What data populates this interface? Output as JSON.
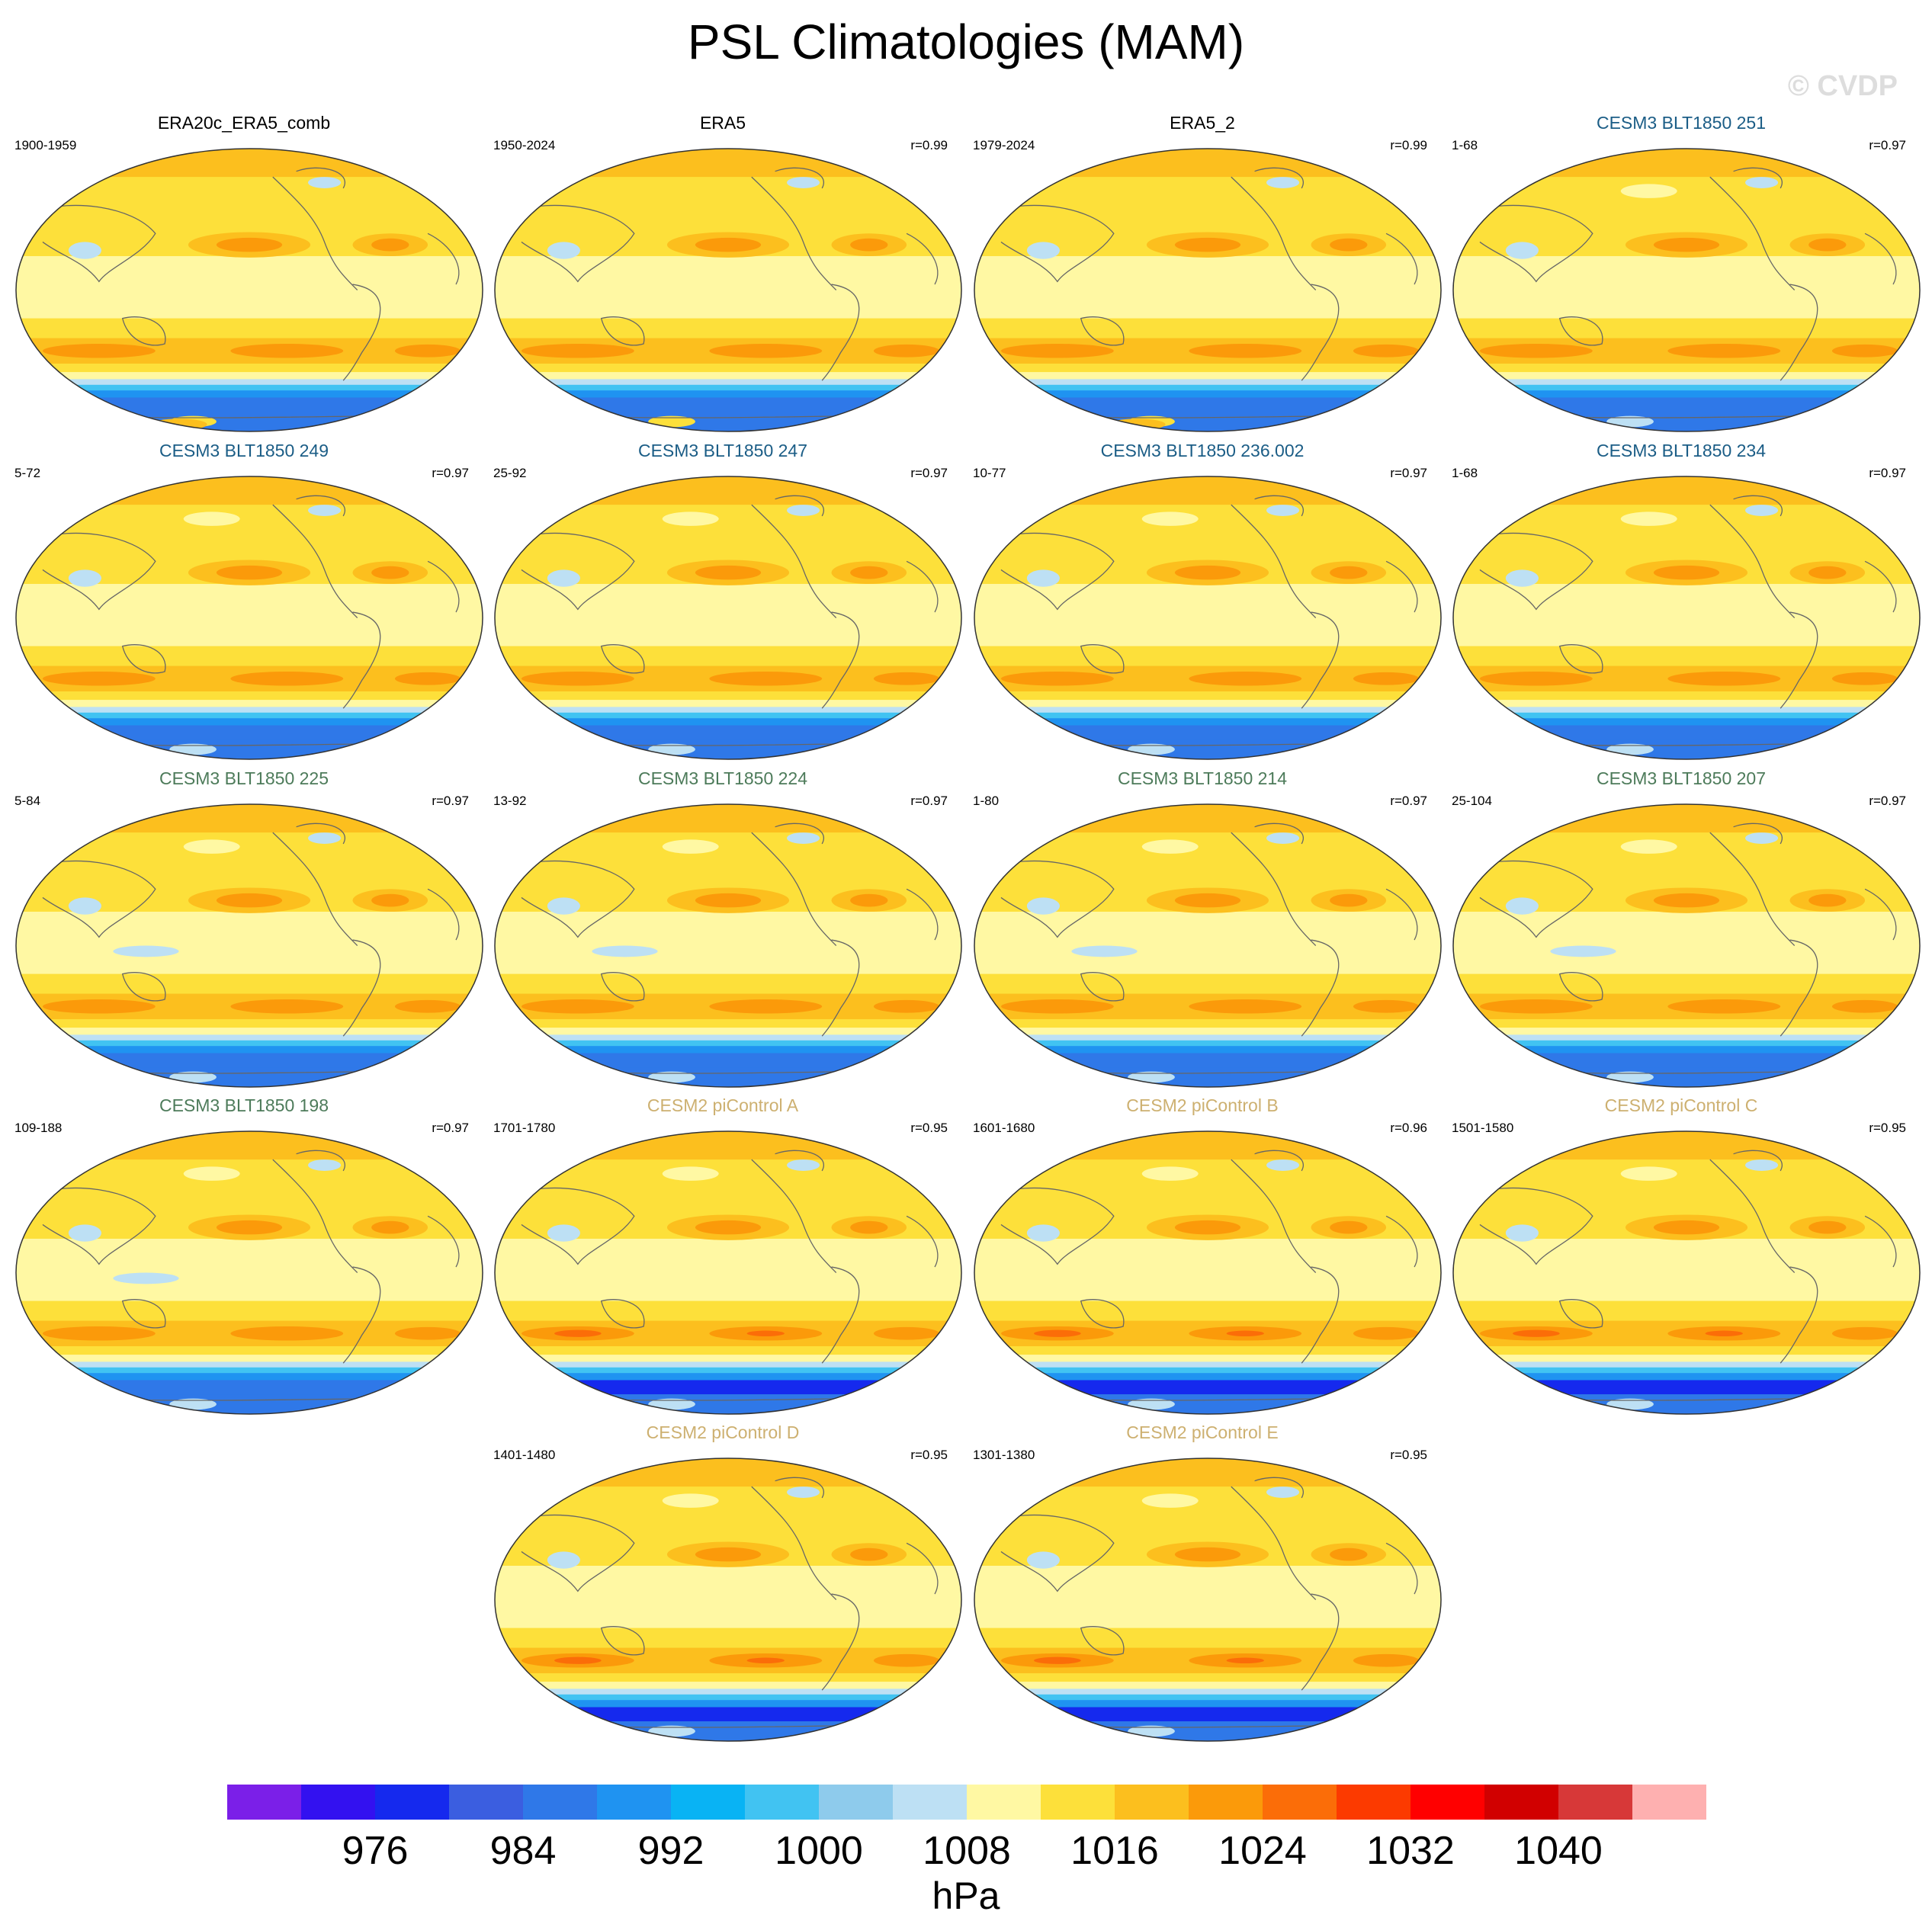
{
  "title": "PSL Climatologies (MAM)",
  "watermark": "© CVDP",
  "colors": {
    "levels": [
      "#7b1fe8",
      "#3311f0",
      "#1529ee",
      "#3b5ee0",
      "#2f78e8",
      "#1f93f1",
      "#09b3f4",
      "#41c3f2",
      "#8ecbec",
      "#bde0f4",
      "#fff8a3",
      "#fde03a",
      "#fcbf1e",
      "#fb9a0a",
      "#fb6d08",
      "#fc3a00",
      "#ff0000",
      "#d10000",
      "#d73838",
      "#feb0b0"
    ],
    "reference_title": "#000000",
    "cesm3_blue": "#1b5d86",
    "cesm3_green": "#4d7b5a",
    "cesm2_tan": "#cdb070"
  },
  "chart_data": {
    "type": "heatmap",
    "variable": "PSL",
    "season": "MAM",
    "units": "hPa",
    "colorbar": {
      "labels": [
        "976",
        "984",
        "992",
        "1000",
        "1008",
        "1016",
        "1024",
        "1032",
        "1040"
      ],
      "levels": [
        972,
        976,
        980,
        984,
        988,
        992,
        996,
        1000,
        1004,
        1008,
        1012,
        1016,
        1020,
        1024,
        1028,
        1032,
        1036,
        1040,
        1044
      ]
    },
    "panels": [
      {
        "title": "ERA20c_ERA5_comb",
        "years": "1900-1959",
        "r": "",
        "group": "reference"
      },
      {
        "title": "ERA5",
        "years": "1950-2024",
        "r": "r=0.99",
        "group": "reference"
      },
      {
        "title": "ERA5_2",
        "years": "1979-2024",
        "r": "r=0.99",
        "group": "reference"
      },
      {
        "title": "CESM3 BLT1850 251",
        "years": "1-68",
        "r": "r=0.97",
        "group": "cesm3_blue"
      },
      {
        "title": "CESM3 BLT1850 249",
        "years": "5-72",
        "r": "r=0.97",
        "group": "cesm3_blue"
      },
      {
        "title": "CESM3 BLT1850 247",
        "years": "25-92",
        "r": "r=0.97",
        "group": "cesm3_blue"
      },
      {
        "title": "CESM3 BLT1850 236.002",
        "years": "10-77",
        "r": "r=0.97",
        "group": "cesm3_blue"
      },
      {
        "title": "CESM3 BLT1850 234",
        "years": "1-68",
        "r": "r=0.97",
        "group": "cesm3_blue"
      },
      {
        "title": "CESM3 BLT1850 225",
        "years": "5-84",
        "r": "r=0.97",
        "group": "cesm3_green"
      },
      {
        "title": "CESM3 BLT1850 224",
        "years": "13-92",
        "r": "r=0.97",
        "group": "cesm3_green"
      },
      {
        "title": "CESM3 BLT1850 214",
        "years": "1-80",
        "r": "r=0.97",
        "group": "cesm3_green"
      },
      {
        "title": "CESM3 BLT1850 207",
        "years": "25-104",
        "r": "r=0.97",
        "group": "cesm3_green"
      },
      {
        "title": "CESM3 BLT1850 198",
        "years": "109-188",
        "r": "r=0.97",
        "group": "cesm3_green"
      },
      {
        "title": "CESM2 piControl A",
        "years": "1701-1780",
        "r": "r=0.95",
        "group": "cesm2_tan"
      },
      {
        "title": "CESM2 piControl B",
        "years": "1601-1680",
        "r": "r=0.96",
        "group": "cesm2_tan"
      },
      {
        "title": "CESM2 piControl C",
        "years": "1501-1580",
        "r": "r=0.95",
        "group": "cesm2_tan"
      },
      {
        "title": "CESM2 piControl D",
        "years": "1401-1480",
        "r": "r=0.95",
        "group": "cesm2_tan"
      },
      {
        "title": "CESM2 piControl E",
        "years": "1301-1380",
        "r": "r=0.95",
        "group": "cesm2_tan"
      }
    ]
  }
}
